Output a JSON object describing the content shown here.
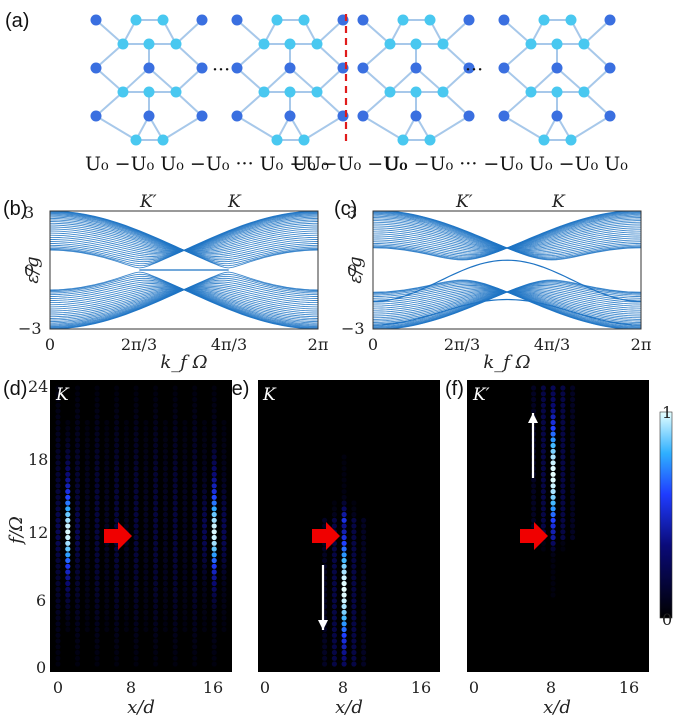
{
  "panels": {
    "a": "(a)",
    "b": "(b)",
    "c": "(c)",
    "d": "(d)",
    "e": "(e)",
    "f": "(f)"
  },
  "lattice": {
    "ellipsis": "···",
    "potential_labels": [
      "U₀ −U₀ U₀ −U₀ ··· U₀ −U₀",
      "U₀ −U₀ −U₀",
      "U₀ −U₀ ··· −U₀ U₀ −U₀ U₀"
    ]
  },
  "colors": {
    "bond": "#a7c8ea",
    "siteA": "#3a6fe0",
    "siteB": "#49c8f0",
    "band": "#1f74c4",
    "divider": "#e01b1b",
    "arrow_red": "#f00000"
  },
  "chart_data": [
    {
      "type": "line",
      "panel": "b",
      "xlabel": "k_f Ω",
      "ylabel": "ε/g",
      "xlim": [
        0,
        6.2832
      ],
      "ylim": [
        -3,
        3
      ],
      "xticks": [
        "0",
        "2π/3",
        "4π/3",
        "2π"
      ],
      "yticks": [
        "3",
        "0",
        "−3"
      ],
      "top_labels": [
        "K′",
        "K"
      ],
      "edge_states": "flat at 0 between 2π/3 and 4π/3"
    },
    {
      "type": "line",
      "panel": "c",
      "xlabel": "k_f Ω",
      "ylabel": "ε/g",
      "xlim": [
        0,
        6.2832
      ],
      "ylim": [
        -3,
        3
      ],
      "xticks": [
        "0",
        "2π/3",
        "4π/3",
        "2π"
      ],
      "yticks": [
        "3",
        "0",
        "−3"
      ],
      "top_labels": [
        "K′",
        "K"
      ],
      "edge_states": "dispersive, max ≈ 0.5 at π"
    },
    {
      "type": "heatmap",
      "panel": "d",
      "corner_label": "K",
      "xlabel": "x/d",
      "ylabel": "f/Ω",
      "xticks": [
        "0",
        "8",
        "16"
      ],
      "yticks": [
        "24",
        "18",
        "12",
        "6",
        "0"
      ],
      "xlim": [
        0,
        17
      ],
      "ylim": [
        0,
        24
      ],
      "features": "two bright columns near x=1 and x=16, f≈6–18; red arrow pointing right at x≈8, f≈11.5"
    },
    {
      "type": "heatmap",
      "panel": "e",
      "corner_label": "K",
      "xlabel": "x/d",
      "ylabel": "",
      "xticks": [
        "0",
        "8",
        "16"
      ],
      "xlim": [
        0,
        17
      ],
      "ylim": [
        0,
        24
      ],
      "features": "bright column at x≈8, f≈1–12; white arrow pointing down"
    },
    {
      "type": "heatmap",
      "panel": "f",
      "corner_label": "K′",
      "xlabel": "x/d",
      "ylabel": "",
      "xticks": [
        "0",
        "8",
        "16"
      ],
      "xlim": [
        0,
        17
      ],
      "ylim": [
        0,
        24
      ],
      "features": "bright column at x≈8, f≈11–22; white arrow pointing up"
    }
  ],
  "colorbar": {
    "max_label": "1",
    "min_label": "0",
    "range": [
      0,
      1
    ]
  }
}
